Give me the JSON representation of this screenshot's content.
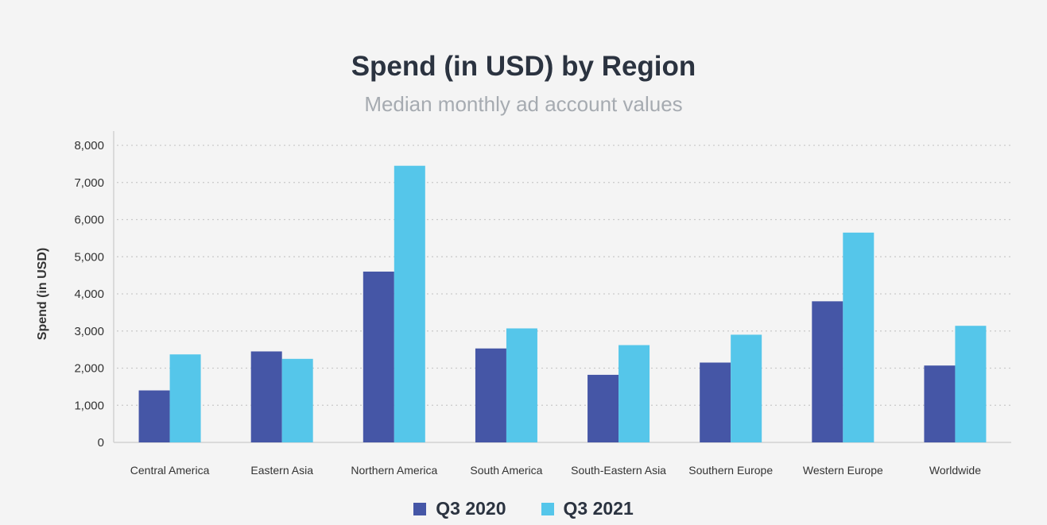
{
  "chart_data": {
    "type": "bar",
    "title": "Spend (in USD) by Region",
    "subtitle": "Median monthly ad account values",
    "xlabel": "",
    "ylabel": "Spend (in USD)",
    "ylim": [
      0,
      8000
    ],
    "yticks": [
      0,
      1000,
      2000,
      3000,
      4000,
      5000,
      6000,
      7000,
      8000
    ],
    "ytick_labels": [
      "0",
      "1,000",
      "2,000",
      "3,000",
      "4,000",
      "5,000",
      "6,000",
      "7,000",
      "8,000"
    ],
    "grid": true,
    "legend_position": "bottom",
    "categories": [
      "Central America",
      "Eastern Asia",
      "Northern America",
      "South America",
      "South-Eastern Asia",
      "Southern Europe",
      "Western Europe",
      "Worldwide"
    ],
    "series": [
      {
        "name": "Q3 2020",
        "color": "#4556a6",
        "values": [
          1400,
          2450,
          4600,
          2530,
          1820,
          2150,
          3800,
          2070
        ]
      },
      {
        "name": "Q3 2021",
        "color": "#55c6ea",
        "values": [
          2370,
          2250,
          7450,
          3070,
          2620,
          2900,
          5650,
          3140
        ]
      }
    ]
  }
}
